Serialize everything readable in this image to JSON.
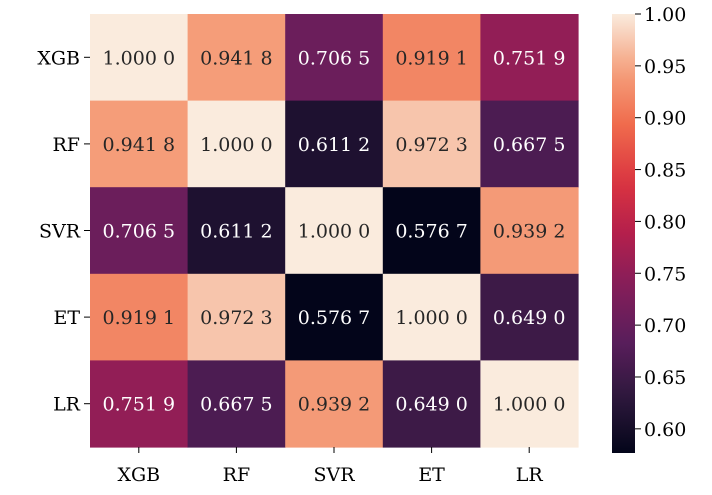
{
  "chart_data": {
    "type": "heatmap",
    "title": "",
    "xlabel": "",
    "ylabel": "",
    "x_categories": [
      "XGB",
      "RF",
      "SVR",
      "ET",
      "LR"
    ],
    "y_categories": [
      "XGB",
      "RF",
      "SVR",
      "ET",
      "LR"
    ],
    "values": [
      [
        1.0,
        0.9418,
        0.7065,
        0.9191,
        0.7519
      ],
      [
        0.9418,
        1.0,
        0.6112,
        0.9723,
        0.6675
      ],
      [
        0.7065,
        0.6112,
        1.0,
        0.5767,
        0.9392
      ],
      [
        0.9191,
        0.9723,
        0.5767,
        1.0,
        0.649
      ],
      [
        0.7519,
        0.6675,
        0.9392,
        0.649,
        1.0
      ]
    ],
    "cell_labels": [
      [
        "1.000 0",
        "0.941 8",
        "0.706 5",
        "0.919 1",
        "0.751 9"
      ],
      [
        "0.941 8",
        "1.000 0",
        "0.611 2",
        "0.972 3",
        "0.667 5"
      ],
      [
        "0.706 5",
        "0.611 2",
        "1.000 0",
        "0.576 7",
        "0.939 2"
      ],
      [
        "0.919 1",
        "0.972 3",
        "0.576 7",
        "1.000 0",
        "0.649 0"
      ],
      [
        "0.751 9",
        "0.667 5",
        "0.939 2",
        "0.649 0",
        "1.000 0"
      ]
    ],
    "colormap": "rocket",
    "color_range": [
      0.5767,
      1.0
    ],
    "colorbar": {
      "ticks": [
        0.6,
        0.65,
        0.7,
        0.75,
        0.8,
        0.85,
        0.9,
        0.95,
        1.0
      ],
      "tick_labels": [
        "0.60",
        "0.65",
        "0.70",
        "0.75",
        "0.80",
        "0.85",
        "0.90",
        "0.95",
        "1.00"
      ]
    }
  }
}
